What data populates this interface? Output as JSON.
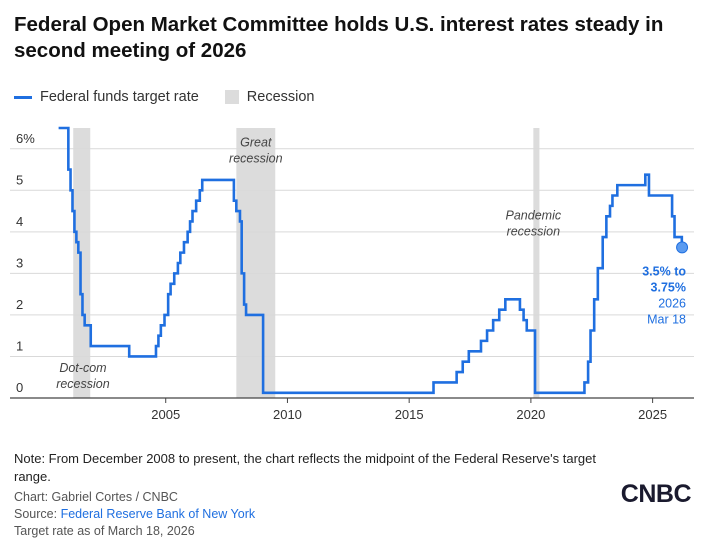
{
  "chart_data": {
    "type": "line",
    "title": "Federal Open Market Committee holds U.S. interest rates steady in second meeting of 2026",
    "legend": {
      "series_label": "Federal funds target rate",
      "shade_label": "Recession"
    },
    "xlabel": "",
    "ylabel": "",
    "xlim": [
      2000.0,
      2026.7
    ],
    "ylim": [
      0,
      6.5
    ],
    "x_ticks": [
      2005,
      2010,
      2015,
      2020,
      2025
    ],
    "x_tick_labels": [
      "2005",
      "2010",
      "2015",
      "2020",
      "2025"
    ],
    "y_ticks": [
      0,
      1,
      2,
      3,
      4,
      5,
      6
    ],
    "y_tick_labels": [
      "0",
      "1",
      "2",
      "3",
      "4",
      "5",
      "6%"
    ],
    "grid": "horizontal",
    "recessions": [
      {
        "label": "Dot-com recession",
        "start": 2001.2,
        "end": 2001.9
      },
      {
        "label": "Great recession",
        "start": 2007.9,
        "end": 2009.5
      },
      {
        "label": "Pandemic recession",
        "start": 2020.1,
        "end": 2020.35
      }
    ],
    "series": [
      {
        "name": "Federal funds target rate",
        "color": "#1f6fe0",
        "x": [
          2000.6,
          2000.8,
          2001.0,
          2001.09,
          2001.17,
          2001.25,
          2001.33,
          2001.41,
          2001.5,
          2001.58,
          2001.67,
          2001.75,
          2001.83,
          2001.92,
          2002.85,
          2003.5,
          2004.5,
          2004.6,
          2004.7,
          2004.8,
          2004.95,
          2005.1,
          2005.2,
          2005.35,
          2005.5,
          2005.6,
          2005.75,
          2005.9,
          2006.0,
          2006.1,
          2006.25,
          2006.4,
          2006.5,
          2007.7,
          2007.8,
          2007.9,
          2008.05,
          2008.12,
          2008.22,
          2008.3,
          2009.0,
          2016.0,
          2016.95,
          2017.2,
          2017.45,
          2017.95,
          2018.2,
          2018.45,
          2018.7,
          2018.95,
          2019.55,
          2019.7,
          2019.83,
          2020.17,
          2020.22,
          2022.2,
          2022.35,
          2022.45,
          2022.6,
          2022.75,
          2022.95,
          2023.1,
          2023.25,
          2023.35,
          2023.55,
          2024.7,
          2024.85,
          2025.8,
          2025.9,
          2026.2
        ],
        "values": [
          6.5,
          6.5,
          5.5,
          5.0,
          4.5,
          4.0,
          3.75,
          3.5,
          2.5,
          2.0,
          1.75,
          1.75,
          1.75,
          1.25,
          1.25,
          1.0,
          1.0,
          1.25,
          1.5,
          1.75,
          2.0,
          2.5,
          2.75,
          3.0,
          3.25,
          3.5,
          3.75,
          4.0,
          4.25,
          4.5,
          4.75,
          5.0,
          5.25,
          5.25,
          4.75,
          4.5,
          4.25,
          3.0,
          2.25,
          2.0,
          0.125,
          0.375,
          0.625,
          0.875,
          1.125,
          1.375,
          1.625,
          1.875,
          2.125,
          2.375,
          2.125,
          1.875,
          1.625,
          0.125,
          0.125,
          0.375,
          0.875,
          1.625,
          2.375,
          3.125,
          3.875,
          4.375,
          4.625,
          4.875,
          5.125,
          5.375,
          4.875,
          4.375,
          3.875,
          3.625
        ]
      }
    ],
    "endpoint": {
      "x": 2026.21,
      "y": 3.625,
      "line1": "3.5% to",
      "line2": "3.75%",
      "line3": "2026",
      "line4": "Mar 18"
    }
  },
  "note": "Note: From December 2008 to present, the chart reflects the midpoint of the Federal Reserve's target range.",
  "credits": {
    "chart_by": "Chart: Gabriel Cortes / CNBC",
    "source_prefix": "Source: ",
    "source_link": "Federal Reserve Bank of New York",
    "as_of": "Target rate as of March 18, 2026"
  },
  "logo": "CNBC",
  "colors": {
    "line": "#1f6fe0",
    "recession": "#dcdcdc",
    "grid": "#d9d9d9",
    "label": "#333333"
  }
}
